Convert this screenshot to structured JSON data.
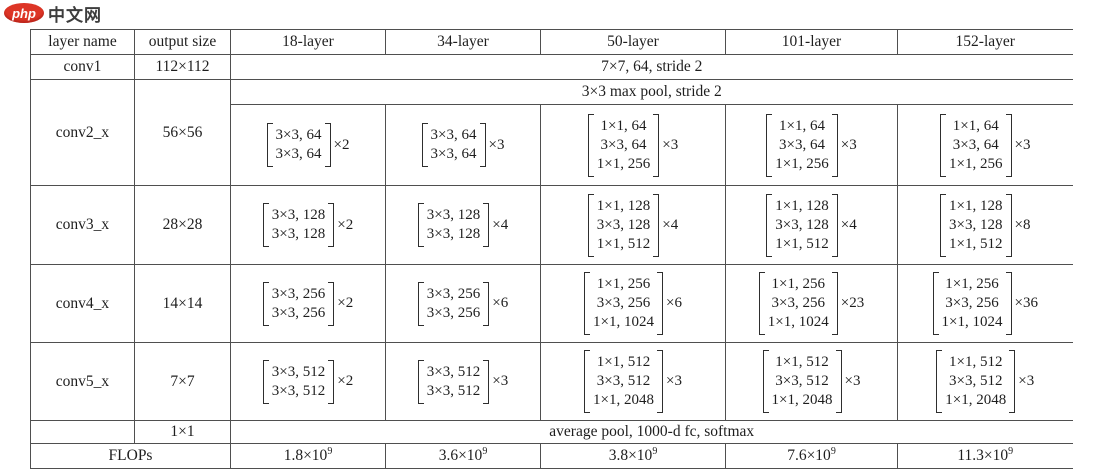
{
  "logo": {
    "php": "php",
    "suffix": "中文网"
  },
  "table": {
    "headers": [
      "layer name",
      "output size",
      "18-layer",
      "34-layer",
      "50-layer",
      "101-layer",
      "152-layer"
    ],
    "conv1": {
      "name": "conv1",
      "output": "112×112",
      "spanned": "7×7, 64, stride 2"
    },
    "conv2": {
      "name": "conv2_x",
      "output": "56×56",
      "pool": "3×3 max pool, stride 2",
      "blocks": [
        {
          "lines": [
            "3×3, 64",
            "3×3, 64"
          ],
          "mult": "×2"
        },
        {
          "lines": [
            "3×3, 64",
            "3×3, 64"
          ],
          "mult": "×3"
        },
        {
          "lines": [
            "1×1, 64",
            "3×3, 64",
            "1×1, 256"
          ],
          "mult": "×3"
        },
        {
          "lines": [
            "1×1, 64",
            "3×3, 64",
            "1×1, 256"
          ],
          "mult": "×3"
        },
        {
          "lines": [
            "1×1, 64",
            "3×3, 64",
            "1×1, 256"
          ],
          "mult": "×3"
        }
      ]
    },
    "conv3": {
      "name": "conv3_x",
      "output": "28×28",
      "blocks": [
        {
          "lines": [
            "3×3, 128",
            "3×3, 128"
          ],
          "mult": "×2"
        },
        {
          "lines": [
            "3×3, 128",
            "3×3, 128"
          ],
          "mult": "×4"
        },
        {
          "lines": [
            "1×1, 128",
            "3×3, 128",
            "1×1, 512"
          ],
          "mult": "×4"
        },
        {
          "lines": [
            "1×1, 128",
            "3×3, 128",
            "1×1, 512"
          ],
          "mult": "×4"
        },
        {
          "lines": [
            "1×1, 128",
            "3×3, 128",
            "1×1, 512"
          ],
          "mult": "×8"
        }
      ]
    },
    "conv4": {
      "name": "conv4_x",
      "output": "14×14",
      "blocks": [
        {
          "lines": [
            "3×3, 256",
            "3×3, 256"
          ],
          "mult": "×2"
        },
        {
          "lines": [
            "3×3, 256",
            "3×3, 256"
          ],
          "mult": "×6"
        },
        {
          "lines": [
            "1×1, 256",
            "3×3, 256",
            "1×1, 1024"
          ],
          "mult": "×6"
        },
        {
          "lines": [
            "1×1, 256",
            "3×3, 256",
            "1×1, 1024"
          ],
          "mult": "×23"
        },
        {
          "lines": [
            "1×1, 256",
            "3×3, 256",
            "1×1, 1024"
          ],
          "mult": "×36"
        }
      ]
    },
    "conv5": {
      "name": "conv5_x",
      "output": "7×7",
      "blocks": [
        {
          "lines": [
            "3×3, 512",
            "3×3, 512"
          ],
          "mult": "×2"
        },
        {
          "lines": [
            "3×3, 512",
            "3×3, 512"
          ],
          "mult": "×3"
        },
        {
          "lines": [
            "1×1, 512",
            "3×3, 512",
            "1×1, 2048"
          ],
          "mult": "×3"
        },
        {
          "lines": [
            "1×1, 512",
            "3×3, 512",
            "1×1, 2048"
          ],
          "mult": "×3"
        },
        {
          "lines": [
            "1×1, 512",
            "3×3, 512",
            "1×1, 2048"
          ],
          "mult": "×3"
        }
      ]
    },
    "pool_row": {
      "output": "1×1",
      "spanned": "average pool, 1000-d fc, softmax"
    },
    "flops": {
      "label": "FLOPs",
      "values": [
        {
          "m": "1.8×10",
          "e": "9"
        },
        {
          "m": "3.6×10",
          "e": "9"
        },
        {
          "m": "3.8×10",
          "e": "9"
        },
        {
          "m": "7.6×10",
          "e": "9"
        },
        {
          "m": "11.3×10",
          "e": "9"
        }
      ]
    }
  }
}
